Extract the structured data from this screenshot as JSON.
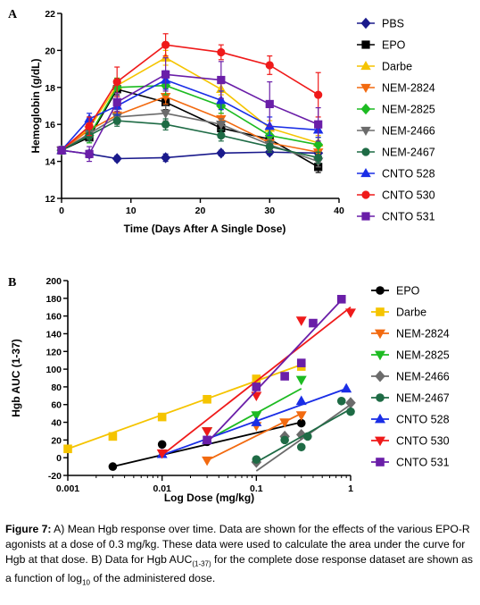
{
  "caption": {
    "label": "Figure 7:",
    "text1": " A) Mean Hgb response over time. Data are shown for the effects of the various EPO-R agonists at a dose of 0.3 mg/kg. These data were used to calculate the area under the curve for Hgb at that dose. B) Data for Hgb AUC",
    "sub1": "(1-37)",
    "text2": " for the complete dose response dataset are shown as a function of log",
    "sub2": "10",
    "text3": " of the administered dose."
  },
  "chart_data": [
    {
      "panel": "A",
      "type": "line",
      "xlabel": "Time (Days After A Single Dose)",
      "ylabel": "Hemoglobin (g/dL)",
      "xlim": [
        0,
        40
      ],
      "ylim": [
        12,
        22
      ],
      "xticks": [
        "0",
        "10",
        "20",
        "30",
        "40"
      ],
      "yticks": [
        "12",
        "14",
        "16",
        "18",
        "20",
        "22"
      ],
      "legend_position": "right",
      "x": [
        0,
        4,
        8,
        15,
        23,
        30,
        37
      ],
      "series": [
        {
          "name": "PBS",
          "color": "#1a1a8c",
          "marker": "diamond",
          "values": [
            14.6,
            14.4,
            14.15,
            14.2,
            14.45,
            14.5,
            14.45
          ],
          "err": [
            0.15,
            0.2,
            0.15,
            0.2,
            0.15,
            0.15,
            0.15
          ]
        },
        {
          "name": "EPO",
          "color": "#000000",
          "marker": "square",
          "values": [
            14.6,
            15.3,
            17.9,
            17.2,
            15.8,
            15.2,
            13.7
          ],
          "err": [
            0.2,
            0.3,
            0.3,
            0.4,
            0.3,
            0.3,
            0.3
          ]
        },
        {
          "name": "Darbe",
          "color": "#f5c400",
          "marker": "triangle-up",
          "values": [
            14.6,
            15.8,
            18.1,
            19.6,
            17.9,
            15.8,
            15.0
          ],
          "err": [
            0.2,
            0.4,
            0.4,
            0.4,
            0.3,
            0.4,
            0.4
          ]
        },
        {
          "name": "NEM-2824",
          "color": "#f26a10",
          "marker": "triangle-down",
          "values": [
            14.6,
            15.7,
            16.5,
            17.5,
            16.3,
            15.0,
            14.5
          ],
          "err": [
            0.2,
            0.4,
            0.4,
            0.4,
            0.3,
            0.3,
            0.3
          ]
        },
        {
          "name": "NEM-2825",
          "color": "#1dbb22",
          "marker": "diamond",
          "values": [
            14.6,
            15.4,
            18.0,
            18.1,
            17.0,
            15.4,
            14.9
          ],
          "err": [
            0.2,
            0.4,
            0.5,
            0.5,
            0.4,
            0.4,
            0.4
          ]
        },
        {
          "name": "NEM-2466",
          "color": "#6b6b6b",
          "marker": "triangle-down",
          "values": [
            14.6,
            15.5,
            16.4,
            16.6,
            16.0,
            14.9,
            14.0
          ],
          "err": [
            0.2,
            0.3,
            0.4,
            0.4,
            0.3,
            0.3,
            0.3
          ]
        },
        {
          "name": "NEM-2467",
          "color": "#1e6b45",
          "marker": "circle",
          "values": [
            14.6,
            15.4,
            16.2,
            16.0,
            15.4,
            14.8,
            14.2
          ],
          "err": [
            0.2,
            0.3,
            0.3,
            0.3,
            0.3,
            0.3,
            0.3
          ]
        },
        {
          "name": "CNTO 528",
          "color": "#1a2ee6",
          "marker": "triangle-up",
          "values": [
            14.6,
            16.3,
            17.0,
            18.4,
            17.3,
            15.9,
            15.7
          ],
          "err": [
            0.2,
            0.3,
            0.5,
            0.5,
            0.5,
            0.5,
            0.4
          ]
        },
        {
          "name": "CNTO 530",
          "color": "#ef1a1a",
          "marker": "circle",
          "values": [
            14.6,
            15.9,
            18.3,
            20.3,
            19.9,
            19.2,
            17.6
          ],
          "err": [
            0.2,
            0.5,
            0.8,
            0.6,
            0.4,
            0.5,
            1.2
          ]
        },
        {
          "name": "CNTO 531",
          "color": "#6a1ea8",
          "marker": "square",
          "values": [
            14.6,
            14.4,
            17.2,
            18.7,
            18.4,
            17.1,
            16.0
          ],
          "err": [
            0.2,
            0.4,
            0.5,
            0.9,
            1.0,
            1.2,
            0.9
          ]
        }
      ]
    },
    {
      "panel": "B",
      "type": "scatter",
      "xlabel": "Log Dose (mg/kg)",
      "ylabel": "Hgb AUC (1-37)",
      "xscale": "log",
      "xlim": [
        0.001,
        1
      ],
      "ylim": [
        -20,
        200
      ],
      "xticks": [
        "0.001",
        "0.01",
        "0.1",
        "1"
      ],
      "yticks": [
        "-20",
        "0",
        "20",
        "40",
        "60",
        "80",
        "100",
        "120",
        "140",
        "160",
        "180",
        "200"
      ],
      "legend_position": "right",
      "series": [
        {
          "name": "EPO",
          "color": "#000000",
          "marker": "circle",
          "points": [
            [
              0.003,
              -10
            ],
            [
              0.01,
              15
            ],
            [
              0.03,
              18
            ],
            [
              0.3,
              39
            ]
          ],
          "fit": [
            [
              0.003,
              -10
            ],
            [
              0.3,
              40
            ]
          ]
        },
        {
          "name": "Darbe",
          "color": "#f5c400",
          "marker": "square",
          "points": [
            [
              0.001,
              10
            ],
            [
              0.003,
              24
            ],
            [
              0.01,
              46
            ],
            [
              0.03,
              66
            ],
            [
              0.1,
              89
            ],
            [
              0.3,
              103
            ]
          ],
          "fit": [
            [
              0.001,
              10
            ],
            [
              0.3,
              105
            ]
          ]
        },
        {
          "name": "NEM-2824",
          "color": "#f26a10",
          "marker": "triangle-down",
          "points": [
            [
              0.03,
              -3
            ],
            [
              0.1,
              36
            ],
            [
              0.2,
              40
            ],
            [
              0.3,
              48
            ]
          ],
          "fit": [
            [
              0.03,
              -3
            ],
            [
              0.3,
              50
            ]
          ]
        },
        {
          "name": "NEM-2825",
          "color": "#1dbb22",
          "marker": "triangle-down",
          "points": [
            [
              0.03,
              30
            ],
            [
              0.1,
              48
            ],
            [
              0.3,
              88
            ]
          ],
          "fit": [
            [
              0.03,
              20
            ],
            [
              0.3,
              78
            ]
          ]
        },
        {
          "name": "NEM-2466",
          "color": "#6b6b6b",
          "marker": "diamond",
          "points": [
            [
              0.1,
              -5
            ],
            [
              0.3,
              26
            ],
            [
              0.2,
              24
            ],
            [
              1,
              62
            ]
          ],
          "fit": [
            [
              0.1,
              -15
            ],
            [
              1,
              60
            ]
          ]
        },
        {
          "name": "NEM-2467",
          "color": "#1e6b45",
          "marker": "circle",
          "points": [
            [
              0.1,
              -2
            ],
            [
              0.2,
              20
            ],
            [
              0.3,
              12
            ],
            [
              0.35,
              24
            ],
            [
              0.8,
              64
            ],
            [
              1,
              52
            ]
          ],
          "fit": [
            [
              0.1,
              -5
            ],
            [
              1,
              55
            ]
          ]
        },
        {
          "name": "CNTO 528",
          "color": "#1a2ee6",
          "marker": "triangle-up",
          "points": [
            [
              0.01,
              4
            ],
            [
              0.03,
              20
            ],
            [
              0.1,
              40
            ],
            [
              0.3,
              64
            ],
            [
              0.9,
              78
            ]
          ],
          "fit": [
            [
              0.01,
              3
            ],
            [
              0.9,
              78
            ]
          ]
        },
        {
          "name": "CNTO 530",
          "color": "#ef1a1a",
          "marker": "triangle-down",
          "points": [
            [
              0.01,
              5
            ],
            [
              0.03,
              30
            ],
            [
              0.1,
              70
            ],
            [
              0.3,
              155
            ],
            [
              1,
              164
            ]
          ],
          "fit": [
            [
              0.01,
              3
            ],
            [
              1,
              170
            ]
          ]
        },
        {
          "name": "CNTO 531",
          "color": "#6a1ea8",
          "marker": "square",
          "points": [
            [
              0.03,
              20
            ],
            [
              0.1,
              80
            ],
            [
              0.2,
              92
            ],
            [
              0.3,
              107
            ],
            [
              0.4,
              152
            ],
            [
              0.8,
              179
            ]
          ],
          "fit": [
            [
              0.03,
              17
            ],
            [
              0.8,
              178
            ]
          ]
        }
      ]
    }
  ]
}
